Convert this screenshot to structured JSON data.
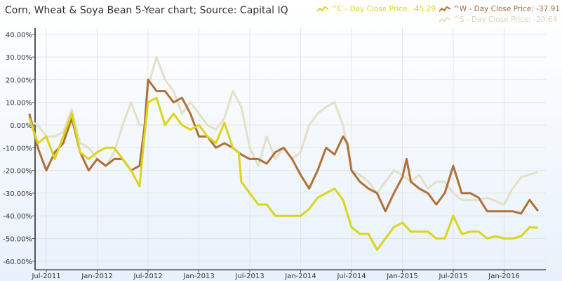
{
  "chart_data": {
    "type": "line",
    "title": "Corn, Wheat & Soya Bean 5-Year chart; Source: Capital IQ",
    "xlabel": "",
    "ylabel": "",
    "ylim": [
      -60,
      40
    ],
    "yticks": [
      "40.00%",
      "30.00%",
      "20.00%",
      "10.00%",
      "0.00%",
      "-10.00%",
      "-20.00%",
      "-30.00%",
      "-40.00%",
      "-50.00%",
      "-60.00%"
    ],
    "xticks": [
      "Jul-2011",
      "Jan-2012",
      "Jul-2012",
      "Jan-2013",
      "Jul-2013",
      "Jan-2014",
      "Jul-2014",
      "Jan-2015",
      "Jul-2015",
      "Jan-2016"
    ],
    "grid": true,
    "legend_position": "top-right",
    "series": [
      {
        "name": "^C - Day Close Price: -45.29",
        "color": "#d9d61c",
        "points": [
          [
            "2011-05",
            3
          ],
          [
            "2011-06",
            -8
          ],
          [
            "2011-07",
            -5
          ],
          [
            "2011-08",
            -15
          ],
          [
            "2011-09",
            -5
          ],
          [
            "2011-10",
            5
          ],
          [
            "2011-11",
            -12
          ],
          [
            "2011-12",
            -15
          ],
          [
            "2012-01",
            -12
          ],
          [
            "2012-02",
            -10
          ],
          [
            "2012-03",
            -10
          ],
          [
            "2012-04",
            -15
          ],
          [
            "2012-05",
            -20
          ],
          [
            "2012-06",
            -27
          ],
          [
            "2012-06.7",
            0
          ],
          [
            "2012-07",
            10
          ],
          [
            "2012-08",
            12
          ],
          [
            "2012-09",
            0
          ],
          [
            "2012-10",
            5
          ],
          [
            "2012-11",
            0
          ],
          [
            "2012-12",
            -2
          ],
          [
            "2013-01",
            0
          ],
          [
            "2013-02",
            -5
          ],
          [
            "2013-03",
            -8
          ],
          [
            "2013-04",
            1
          ],
          [
            "2013-05",
            -10
          ],
          [
            "2013-05.7",
            -12
          ],
          [
            "2013-06",
            -25
          ],
          [
            "2013-07",
            -30
          ],
          [
            "2013-08",
            -35
          ],
          [
            "2013-09",
            -35
          ],
          [
            "2013-10",
            -40
          ],
          [
            "2013-11",
            -40
          ],
          [
            "2013-12",
            -40
          ],
          [
            "2014-01",
            -40
          ],
          [
            "2014-02",
            -37
          ],
          [
            "2014-03",
            -32
          ],
          [
            "2014-04",
            -30
          ],
          [
            "2014-05",
            -28
          ],
          [
            "2014-06",
            -33
          ],
          [
            "2014-07",
            -45
          ],
          [
            "2014-08",
            -48
          ],
          [
            "2014-09",
            -48
          ],
          [
            "2014-10",
            -55
          ],
          [
            "2014-11",
            -50
          ],
          [
            "2014-12",
            -45
          ],
          [
            "2015-01",
            -43
          ],
          [
            "2015-02",
            -47
          ],
          [
            "2015-03",
            -47
          ],
          [
            "2015-04",
            -47
          ],
          [
            "2015-05",
            -50
          ],
          [
            "2015-06",
            -50
          ],
          [
            "2015-07",
            -40
          ],
          [
            "2015-08",
            -48
          ],
          [
            "2015-09",
            -47
          ],
          [
            "2015-10",
            -47
          ],
          [
            "2015-11",
            -50
          ],
          [
            "2015-12",
            -49
          ],
          [
            "2016-01",
            -50
          ],
          [
            "2016-02",
            -50
          ],
          [
            "2016-03",
            -49
          ],
          [
            "2016-04",
            -45
          ],
          [
            "2016-05",
            -45.29
          ]
        ]
      },
      {
        "name": "^W - Day Close Price: -37.91",
        "color": "#b07038",
        "points": [
          [
            "2011-05",
            5
          ],
          [
            "2011-06",
            -10
          ],
          [
            "2011-07",
            -20
          ],
          [
            "2011-08",
            -12
          ],
          [
            "2011-09",
            -8
          ],
          [
            "2011-10",
            3
          ],
          [
            "2011-11",
            -12
          ],
          [
            "2011-12",
            -20
          ],
          [
            "2012-01",
            -15
          ],
          [
            "2012-02",
            -18
          ],
          [
            "2012-03",
            -15
          ],
          [
            "2012-04",
            -15
          ],
          [
            "2012-05",
            -20
          ],
          [
            "2012-06",
            -18
          ],
          [
            "2012-06.6",
            0
          ],
          [
            "2012-07",
            20
          ],
          [
            "2012-08",
            15
          ],
          [
            "2012-09",
            15
          ],
          [
            "2012-10",
            10
          ],
          [
            "2012-11",
            12
          ],
          [
            "2012-12",
            5
          ],
          [
            "2013-01",
            -5
          ],
          [
            "2013-02",
            -5
          ],
          [
            "2013-03",
            -10
          ],
          [
            "2013-04",
            -8
          ],
          [
            "2013-05",
            -10
          ],
          [
            "2013-06",
            -13
          ],
          [
            "2013-07",
            -15
          ],
          [
            "2013-08",
            -15
          ],
          [
            "2013-09",
            -17
          ],
          [
            "2013-10",
            -12
          ],
          [
            "2013-11",
            -10
          ],
          [
            "2013-12",
            -15
          ],
          [
            "2014-01",
            -22
          ],
          [
            "2014-02",
            -28
          ],
          [
            "2014-03",
            -20
          ],
          [
            "2014-04",
            -10
          ],
          [
            "2014-05",
            -13
          ],
          [
            "2014-06",
            -5
          ],
          [
            "2014-06.5",
            -8
          ],
          [
            "2014-07",
            -20
          ],
          [
            "2014-08",
            -25
          ],
          [
            "2014-09",
            -28
          ],
          [
            "2014-10",
            -30
          ],
          [
            "2014-11",
            -38
          ],
          [
            "2014-12",
            -30
          ],
          [
            "2015-01",
            -23
          ],
          [
            "2015-01.5",
            -15
          ],
          [
            "2015-02",
            -25
          ],
          [
            "2015-03",
            -28
          ],
          [
            "2015-04",
            -30
          ],
          [
            "2015-05",
            -35
          ],
          [
            "2015-06",
            -30
          ],
          [
            "2015-07",
            -18
          ],
          [
            "2015-08",
            -30
          ],
          [
            "2015-09",
            -30
          ],
          [
            "2015-10",
            -32
          ],
          [
            "2015-11",
            -38
          ],
          [
            "2015-12",
            -38
          ],
          [
            "2016-01",
            -38
          ],
          [
            "2016-02",
            -38
          ],
          [
            "2016-03",
            -39
          ],
          [
            "2016-04",
            -33
          ],
          [
            "2016-05",
            -37.91
          ]
        ]
      },
      {
        "name": "^S - Day Close Price: -20.64",
        "color": "#e3e0c6",
        "points": [
          [
            "2011-05",
            2
          ],
          [
            "2011-06",
            0
          ],
          [
            "2011-07",
            -5
          ],
          [
            "2011-08",
            -5
          ],
          [
            "2011-09",
            -3
          ],
          [
            "2011-10",
            7
          ],
          [
            "2011-11",
            -8
          ],
          [
            "2011-12",
            -10
          ],
          [
            "2012-01",
            -15
          ],
          [
            "2012-02",
            -18
          ],
          [
            "2012-03",
            -12
          ],
          [
            "2012-04",
            0
          ],
          [
            "2012-05",
            10
          ],
          [
            "2012-06",
            0
          ],
          [
            "2012-06.6",
            0
          ],
          [
            "2012-07",
            17
          ],
          [
            "2012-08",
            30
          ],
          [
            "2012-09",
            20
          ],
          [
            "2012-10",
            15
          ],
          [
            "2012-11",
            5
          ],
          [
            "2012-12",
            10
          ],
          [
            "2013-01",
            5
          ],
          [
            "2013-02",
            0
          ],
          [
            "2013-03",
            -2
          ],
          [
            "2013-04",
            3
          ],
          [
            "2013-05",
            15
          ],
          [
            "2013-06",
            8
          ],
          [
            "2013-07",
            -10
          ],
          [
            "2013-08",
            -18
          ],
          [
            "2013-09",
            -5
          ],
          [
            "2013-10",
            -15
          ],
          [
            "2013-11",
            -10
          ],
          [
            "2013-12",
            -15
          ],
          [
            "2014-01",
            -12
          ],
          [
            "2014-02",
            0
          ],
          [
            "2014-03",
            5
          ],
          [
            "2014-04",
            8
          ],
          [
            "2014-05",
            10
          ],
          [
            "2014-06",
            0
          ],
          [
            "2014-07",
            -20
          ],
          [
            "2014-08",
            -22
          ],
          [
            "2014-09",
            -25
          ],
          [
            "2014-10",
            -30
          ],
          [
            "2014-11",
            -25
          ],
          [
            "2014-12",
            -20
          ],
          [
            "2015-01",
            -22
          ],
          [
            "2015-02",
            -25
          ],
          [
            "2015-03",
            -22
          ],
          [
            "2015-04",
            -28
          ],
          [
            "2015-05",
            -25
          ],
          [
            "2015-06",
            -25
          ],
          [
            "2015-07",
            -30
          ],
          [
            "2015-08",
            -33
          ],
          [
            "2015-09",
            -33
          ],
          [
            "2015-10",
            -33
          ],
          [
            "2015-11",
            -32
          ],
          [
            "2016-01",
            -35
          ],
          [
            "2016-02",
            -28
          ],
          [
            "2016-03",
            -23
          ],
          [
            "2016-05",
            -20.64
          ]
        ]
      }
    ]
  }
}
